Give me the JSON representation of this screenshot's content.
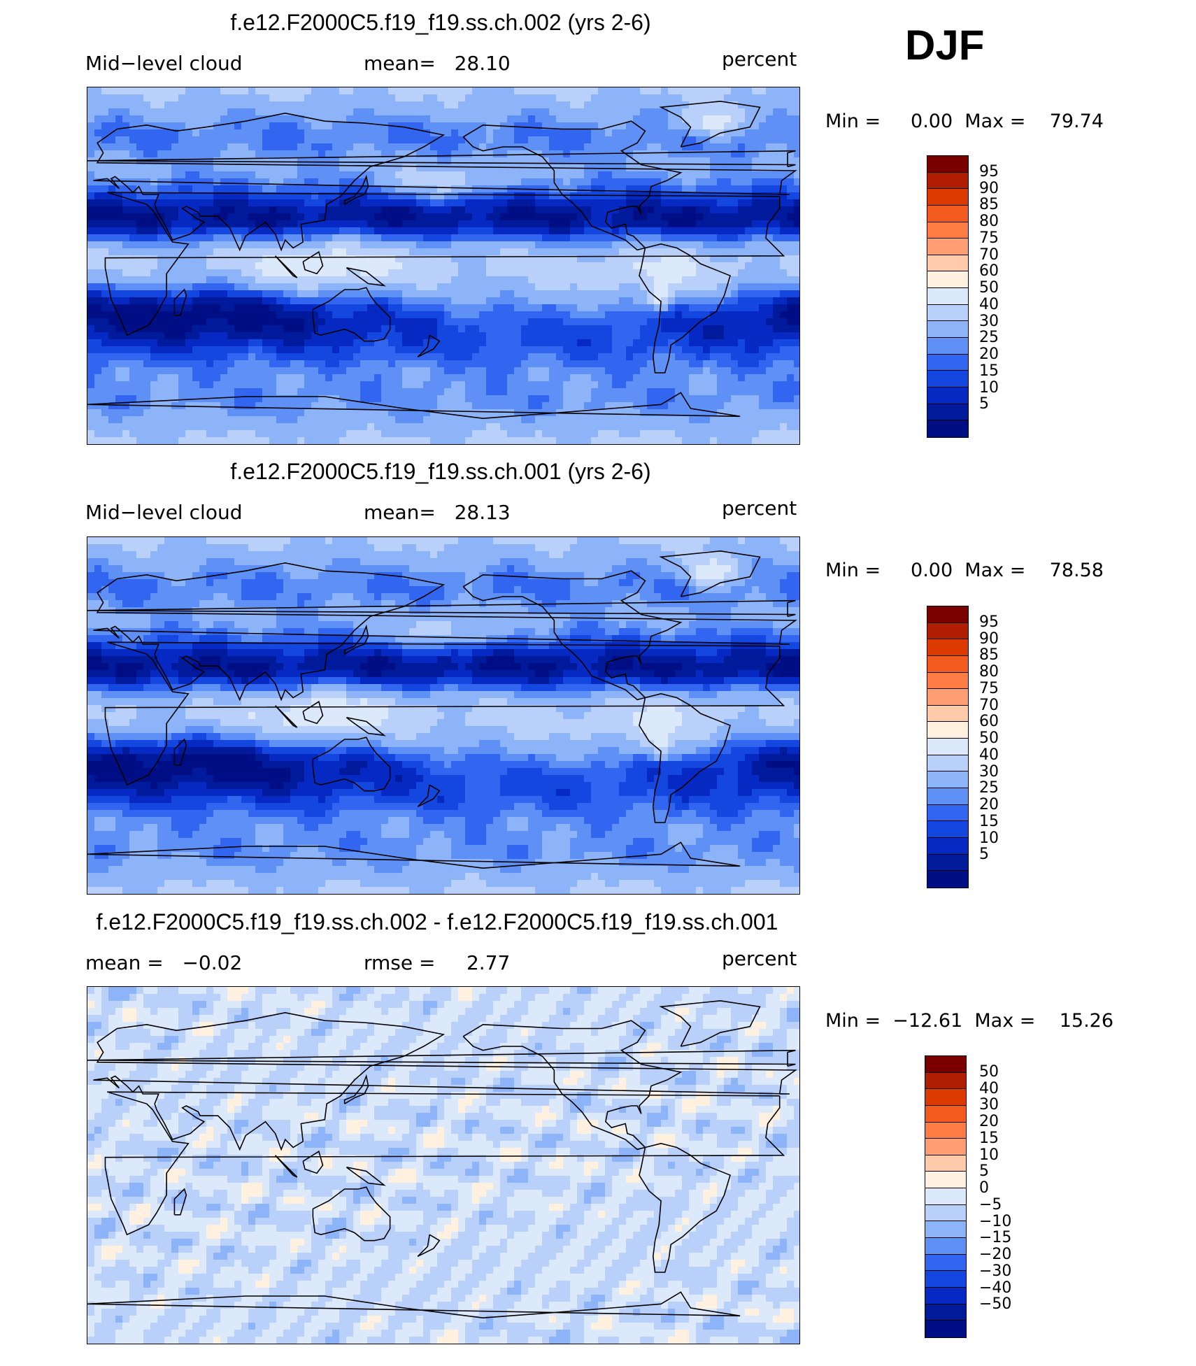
{
  "season": "DJF",
  "panels": [
    {
      "title": "f.e12.F2000C5.f19_f19.ss.ch.002 (yrs 2-6)",
      "left_label": "Mid−level cloud",
      "center_label": "mean=   28.10",
      "units": "percent",
      "minmax": "Min =     0.00  Max =    79.74",
      "field": "mean"
    },
    {
      "title": "f.e12.F2000C5.f19_f19.ss.ch.001 (yrs 2-6)",
      "left_label": "Mid−level cloud",
      "center_label": "mean=   28.13",
      "units": "percent",
      "minmax": "Min =     0.00  Max =    78.58",
      "field": "mean"
    },
    {
      "title": "f.e12.F2000C5.f19_f19.ss.ch.002 - f.e12.F2000C5.f19_f19.ss.ch.001",
      "left_label": "mean =   −0.02",
      "center_label": "rmse =     2.77",
      "units": "percent",
      "minmax": "Min =  −12.61  Max =    15.26",
      "field": "diff"
    }
  ],
  "colorbar_mean": {
    "colors": [
      "#7a0000",
      "#b01d00",
      "#dc3a00",
      "#f25a1e",
      "#ff7c45",
      "#ff9e72",
      "#ffcbaa",
      "#fff0e0",
      "#dce9fb",
      "#b8d0fa",
      "#8db3f8",
      "#5e90f5",
      "#3366f0",
      "#1446e0",
      "#0629c4",
      "#001a9c",
      "#000e86"
    ],
    "labels": [
      "95",
      "90",
      "85",
      "80",
      "75",
      "70",
      "60",
      "50",
      "40",
      "30",
      "25",
      "20",
      "15",
      "10",
      "5"
    ]
  },
  "colorbar_diff": {
    "colors": [
      "#7a0000",
      "#b01d00",
      "#dc3a00",
      "#f25a1e",
      "#ff7c45",
      "#ff9e72",
      "#ffcbaa",
      "#fff0e0",
      "#dce9fb",
      "#b8d0fa",
      "#8db3f8",
      "#5e90f5",
      "#3366f0",
      "#1446e0",
      "#0629c4",
      "#001a9c",
      "#000e86"
    ],
    "labels": [
      "50",
      "40",
      "30",
      "20",
      "15",
      "10",
      "5",
      "0",
      "−5",
      "−10",
      "−15",
      "−20",
      "−30",
      "−40",
      "−50"
    ]
  }
}
